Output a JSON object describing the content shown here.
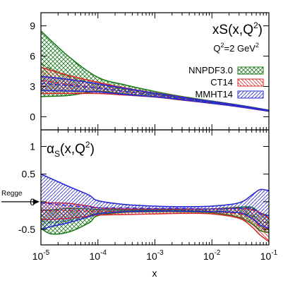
{
  "chart_data": [
    {
      "type": "line",
      "panel": "top",
      "title_main": "xS(x,Q",
      "title_sup": "2",
      "title_close": ")",
      "subtitle_main": "Q",
      "subtitle_sup": "2",
      "subtitle_rest": "=2 GeV",
      "subtitle_sup2": "2",
      "xscale": "log",
      "xlim": [
        1e-05,
        0.1
      ],
      "ylim": [
        -1.3,
        10.3
      ],
      "yticks": [
        "0",
        "3",
        "6",
        "9"
      ],
      "ytick_values": [
        0,
        3,
        6,
        9
      ],
      "legend_position": "top-right",
      "series": [
        {
          "name": "NNPDF3.0",
          "color": "#1e7a1e",
          "hatch": "cross",
          "x": [
            1e-05,
            3e-05,
            0.0001,
            0.0003,
            0.001,
            0.003,
            0.01,
            0.03,
            0.1
          ],
          "upper": [
            8.5,
            6.0,
            3.9,
            3.15,
            2.5,
            2.0,
            1.55,
            1.15,
            0.65
          ],
          "central": [
            5.2,
            4.0,
            3.2,
            2.7,
            2.25,
            1.85,
            1.45,
            1.08,
            0.6
          ],
          "lower": [
            2.0,
            2.1,
            2.5,
            2.25,
            2.0,
            1.7,
            1.35,
            1.0,
            0.55
          ]
        },
        {
          "name": "CT14",
          "color": "#d42a2a",
          "hatch": "diag-down",
          "x": [
            1e-05,
            3e-05,
            0.0001,
            0.0003,
            0.001,
            0.003,
            0.01,
            0.03,
            0.1
          ],
          "upper": [
            4.9,
            4.1,
            3.4,
            2.85,
            2.35,
            1.95,
            1.5,
            1.12,
            0.62
          ],
          "central": [
            3.6,
            3.2,
            2.85,
            2.5,
            2.15,
            1.8,
            1.42,
            1.05,
            0.58
          ],
          "lower": [
            2.3,
            2.3,
            2.3,
            2.15,
            1.95,
            1.65,
            1.32,
            0.98,
            0.54
          ]
        },
        {
          "name": "MMHT14",
          "color": "#2a2ad4",
          "hatch": "diag-up",
          "x": [
            1e-05,
            3e-05,
            0.0001,
            0.0003,
            0.001,
            0.003,
            0.01,
            0.03,
            0.1
          ],
          "upper": [
            4.0,
            3.7,
            3.25,
            2.8,
            2.32,
            1.92,
            1.5,
            1.12,
            0.63
          ],
          "central": [
            3.3,
            3.1,
            2.85,
            2.5,
            2.15,
            1.8,
            1.42,
            1.06,
            0.59
          ],
          "lower": [
            2.6,
            2.55,
            2.45,
            2.2,
            1.97,
            1.68,
            1.33,
            0.99,
            0.55
          ]
        }
      ]
    },
    {
      "type": "line",
      "panel": "bottom",
      "title_main": "α",
      "title_sub": "S",
      "title_rest": "(x,Q",
      "title_sup": "2",
      "title_close": ")",
      "xscale": "log",
      "xlabel": "x",
      "xlim": [
        1e-05,
        0.1
      ],
      "ylim": [
        -0.78,
        1.3
      ],
      "yticks": [
        "-0.5",
        "0",
        "0.5",
        "1"
      ],
      "ytick_values": [
        -0.5,
        0,
        0.5,
        1
      ],
      "xtick_bases": [
        "10",
        "10",
        "10",
        "10",
        "10"
      ],
      "xtick_exponents": [
        "-5",
        "-4",
        "-3",
        "-2",
        "-1"
      ],
      "annotation": "Regge",
      "annotation_y": 0,
      "series": [
        {
          "name": "NNPDF3.0",
          "color": "#1e7a1e",
          "hatch": "cross",
          "x": [
            1e-05,
            1.5e-05,
            3e-05,
            7e-05,
            0.0001,
            0.0003,
            0.001,
            0.003,
            0.01,
            0.03,
            0.05,
            0.07,
            0.1
          ],
          "upper": [
            -0.15,
            -0.15,
            -0.12,
            -0.13,
            -0.14,
            -0.15,
            -0.15,
            -0.14,
            -0.13,
            -0.1,
            -0.1,
            -0.2,
            -0.25
          ],
          "central": [
            -0.35,
            -0.37,
            -0.34,
            -0.25,
            -0.2,
            -0.17,
            -0.16,
            -0.16,
            -0.17,
            -0.2,
            -0.25,
            -0.35,
            -0.38
          ],
          "lower": [
            -0.48,
            -0.58,
            -0.55,
            -0.38,
            -0.25,
            -0.19,
            -0.18,
            -0.18,
            -0.2,
            -0.28,
            -0.4,
            -0.52,
            -0.56
          ]
        },
        {
          "name": "CT14",
          "color": "#d42a2a",
          "hatch": "diag-down",
          "x": [
            1e-05,
            1.5e-05,
            3e-05,
            7e-05,
            0.0001,
            0.0003,
            0.001,
            0.003,
            0.01,
            0.03,
            0.05,
            0.07,
            0.1
          ],
          "upper": [
            -0.02,
            -0.02,
            -0.03,
            -0.08,
            -0.11,
            -0.13,
            -0.13,
            -0.13,
            -0.13,
            -0.12,
            -0.14,
            -0.2,
            -0.3
          ],
          "central": [
            -0.16,
            -0.16,
            -0.16,
            -0.17,
            -0.17,
            -0.18,
            -0.17,
            -0.17,
            -0.18,
            -0.22,
            -0.3,
            -0.45,
            -0.5
          ],
          "lower": [
            -0.32,
            -0.32,
            -0.3,
            -0.26,
            -0.24,
            -0.23,
            -0.22,
            -0.21,
            -0.22,
            -0.3,
            -0.45,
            -0.6,
            -0.72
          ]
        },
        {
          "name": "MMHT14",
          "color": "#2a2ad4",
          "hatch": "diag-up",
          "x": [
            1e-05,
            1.5e-05,
            3e-05,
            7e-05,
            0.0001,
            0.0003,
            0.001,
            0.003,
            0.01,
            0.03,
            0.05,
            0.07,
            0.1
          ],
          "upper": [
            0.5,
            0.42,
            0.28,
            0.12,
            0.02,
            -0.05,
            -0.08,
            -0.09,
            -0.08,
            -0.02,
            0.12,
            0.22,
            0.2
          ],
          "central": [
            -0.02,
            -0.04,
            -0.07,
            -0.1,
            -0.11,
            -0.11,
            -0.12,
            -0.12,
            -0.13,
            -0.12,
            -0.12,
            -0.22,
            -0.25
          ],
          "lower": [
            -0.5,
            -0.45,
            -0.38,
            -0.27,
            -0.22,
            -0.18,
            -0.17,
            -0.17,
            -0.18,
            -0.2,
            -0.3,
            -0.42,
            -0.48
          ]
        }
      ]
    }
  ]
}
